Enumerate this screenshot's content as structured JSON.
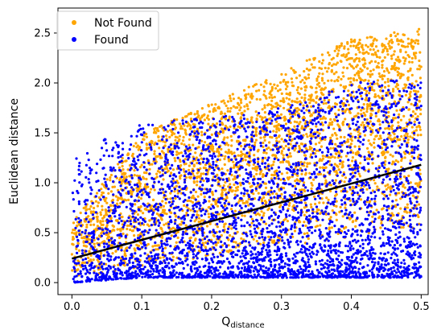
{
  "chart_data": {
    "type": "scatter",
    "title": "",
    "xlabel": "Q",
    "xlabel_subscript": "distance",
    "ylabel": "Euclidean distance",
    "xlim": [
      -0.02,
      0.51
    ],
    "ylim": [
      -0.12,
      2.75
    ],
    "xticks": [
      0.0,
      0.1,
      0.2,
      0.3,
      0.4,
      0.5
    ],
    "xtick_labels": [
      "0.0",
      "0.1",
      "0.2",
      "0.3",
      "0.4",
      "0.5"
    ],
    "yticks": [
      0.0,
      0.5,
      1.0,
      1.5,
      2.0,
      2.5
    ],
    "ytick_labels": [
      "0.0",
      "0.5",
      "1.0",
      "1.5",
      "2.0",
      "2.5"
    ],
    "grid": false,
    "legend_position": "top-left",
    "series": [
      {
        "name": "Not Found",
        "color": "#FFA500",
        "envelope": {
          "x": [
            0.0,
            0.1,
            0.2,
            0.3,
            0.4,
            0.5
          ],
          "low": [
            0.05,
            0.15,
            0.25,
            0.35,
            0.45,
            0.55
          ],
          "high": [
            0.6,
            1.5,
            1.8,
            2.1,
            2.45,
            2.55
          ]
        }
      },
      {
        "name": "Found",
        "color": "#0000FF",
        "envelope": {
          "x": [
            0.0,
            0.1,
            0.2,
            0.3,
            0.4,
            0.5
          ],
          "low": [
            0.0,
            0.05,
            0.05,
            0.05,
            0.05,
            0.05
          ],
          "high": [
            1.3,
            1.6,
            1.65,
            1.75,
            2.0,
            2.05
          ]
        }
      }
    ],
    "trendline": {
      "color": "#000000",
      "x": [
        0.0,
        0.5
      ],
      "y": [
        0.24,
        1.18
      ]
    }
  }
}
